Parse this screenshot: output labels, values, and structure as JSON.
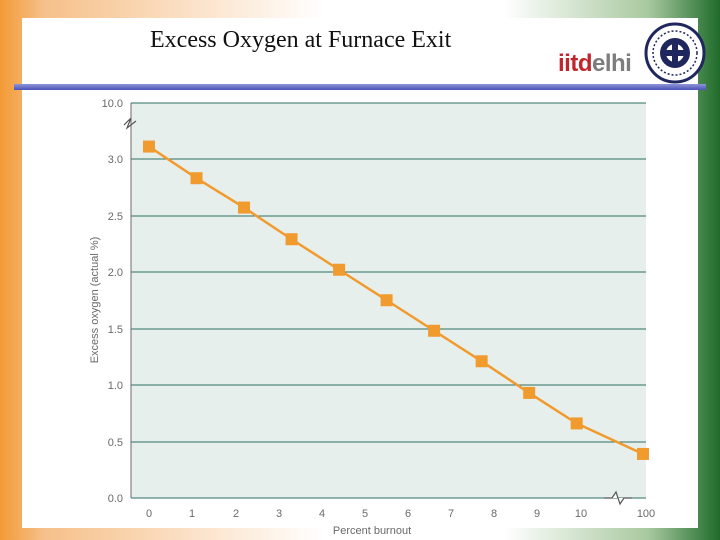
{
  "slide": {
    "title": "Excess Oxygen at Furnace Exit",
    "logo": {
      "part1": "iitd",
      "part2": "elhi"
    }
  },
  "colors": {
    "series": "#f19a2e",
    "plot_bg": "#e6efec",
    "grid": "#2e6f62",
    "rule": "#4a52b8"
  },
  "chart_data": {
    "type": "line",
    "title": "",
    "ylabel": "Excess oxygen (actual %)",
    "xlabel": "Percent burnout",
    "x_ticks": [
      "0",
      "1",
      "2",
      "3",
      "4",
      "5",
      "6",
      "7",
      "8",
      "9",
      "10",
      "100"
    ],
    "y_ticks": [
      "0.0",
      "0.5",
      "1.0",
      "1.5",
      "2.0",
      "2.5",
      "3.0",
      "10.0"
    ],
    "grid": true,
    "broken_axes": true,
    "series": [
      {
        "x": [
          0,
          1.1,
          2.2,
          3.3,
          4.4,
          5.5,
          6.6,
          7.7,
          8.8,
          9.9,
          100
        ],
        "y": [
          3.11,
          2.83,
          2.57,
          2.29,
          2.02,
          1.75,
          1.48,
          1.21,
          0.93,
          0.66,
          0.39
        ]
      }
    ]
  }
}
